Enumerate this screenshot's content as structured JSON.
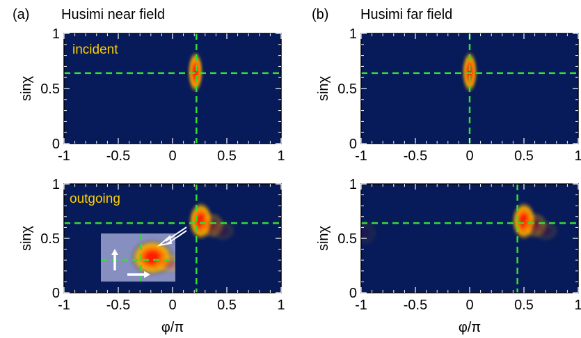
{
  "figure": {
    "panel_a_label": "(a)",
    "panel_a_title": "Husimi near field",
    "panel_b_label": "(b)",
    "panel_b_title": "Husimi far field"
  },
  "colors": {
    "background": "#071a5a",
    "guide_line": "#33dd33",
    "annotation_text": "#ffd000",
    "spot_outer": "#f4b400",
    "spot_core": "#ff1a00"
  },
  "chart_data": [
    {
      "id": "a-incident",
      "type": "heatmap",
      "annotation": "incident",
      "xlabel": "",
      "ylabel": "sinχ",
      "xlim": [
        -1,
        1
      ],
      "ylim": [
        0,
        1
      ],
      "xticks": [
        "-1",
        "-0.5",
        "0",
        "0.5",
        "1"
      ],
      "yticks": [
        "0",
        "0.5",
        "1"
      ],
      "guides": {
        "x": 0.22,
        "y": 0.64
      },
      "peaks": [
        {
          "x": 0.21,
          "y": 0.65,
          "sx": 0.028,
          "sy": 0.075,
          "amp": 1.0
        }
      ]
    },
    {
      "id": "b-incident",
      "type": "heatmap",
      "annotation": "",
      "xlabel": "",
      "ylabel": "sinχ",
      "xlim": [
        -1,
        1
      ],
      "ylim": [
        0,
        1
      ],
      "xticks": [
        "-1",
        "-0.5",
        "0",
        "0.5",
        "1"
      ],
      "yticks": [
        "0",
        "0.5",
        "1"
      ],
      "guides": {
        "x": 0.0,
        "y": 0.64
      },
      "peaks": [
        {
          "x": 0.0,
          "y": 0.65,
          "sx": 0.028,
          "sy": 0.075,
          "amp": 1.0
        }
      ]
    },
    {
      "id": "a-outgoing",
      "type": "heatmap",
      "annotation": "outgoing",
      "xlabel": "φ/π",
      "ylabel": "sinχ",
      "xlim": [
        -1,
        1
      ],
      "ylim": [
        0,
        1
      ],
      "xticks": [
        "-1",
        "-0.5",
        "0",
        "0.5",
        "1"
      ],
      "yticks": [
        "0",
        "0.5",
        "1"
      ],
      "guides": {
        "x": 0.22,
        "y": 0.64
      },
      "peaks": [
        {
          "x": 0.26,
          "y": 0.66,
          "sx": 0.045,
          "sy": 0.07,
          "amp": 1.0
        },
        {
          "x": 0.36,
          "y": 0.62,
          "sx": 0.05,
          "sy": 0.05,
          "amp": 0.35
        },
        {
          "x": 0.46,
          "y": 0.57,
          "sx": 0.05,
          "sy": 0.04,
          "amp": 0.15
        }
      ],
      "inset": {
        "xlim": [
          -0.68,
          -0.16
        ],
        "ylim": [
          0.07,
          0.47
        ],
        "guides": {
          "x": -0.4,
          "y": 0.25
        },
        "peaks": [
          {
            "x": -0.32,
            "y": 0.27,
            "sx": 0.06,
            "sy": 0.06,
            "amp": 1.0
          },
          {
            "x": -0.2,
            "y": 0.22,
            "sx": 0.05,
            "sy": 0.035,
            "amp": 0.3
          }
        ]
      }
    },
    {
      "id": "b-outgoing",
      "type": "heatmap",
      "annotation": "",
      "xlabel": "φ/π",
      "ylabel": "sinχ",
      "xlim": [
        -1,
        1
      ],
      "ylim": [
        0,
        1
      ],
      "xticks": [
        "-1",
        "-0.5",
        "0",
        "0.5",
        "1"
      ],
      "yticks": [
        "0",
        "0.5",
        "1"
      ],
      "guides": {
        "x": 0.44,
        "y": 0.64
      },
      "peaks": [
        {
          "x": 0.5,
          "y": 0.66,
          "sx": 0.045,
          "sy": 0.07,
          "amp": 1.0
        },
        {
          "x": 0.6,
          "y": 0.62,
          "sx": 0.05,
          "sy": 0.05,
          "amp": 0.35
        },
        {
          "x": 0.7,
          "y": 0.57,
          "sx": 0.05,
          "sy": 0.04,
          "amp": 0.15
        },
        {
          "x": -0.97,
          "y": 0.55,
          "sx": 0.05,
          "sy": 0.05,
          "amp": 0.08
        }
      ]
    }
  ]
}
